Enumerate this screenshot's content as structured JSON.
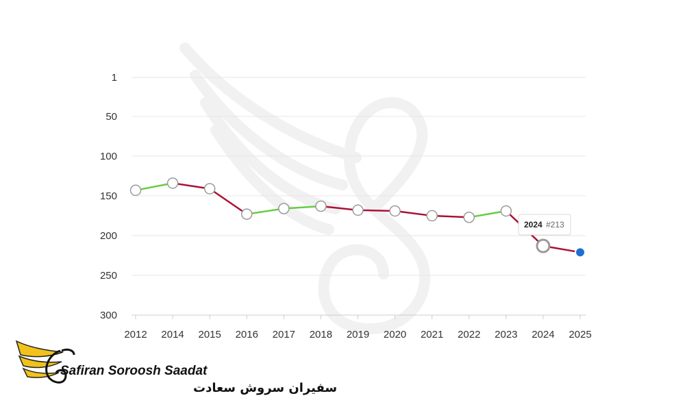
{
  "chart_data": {
    "type": "line",
    "title": "",
    "xlabel": "",
    "ylabel": "",
    "y_inverted": true,
    "ylim": [
      1,
      300
    ],
    "yticks": [
      "1",
      "50",
      "100",
      "150",
      "200",
      "250",
      "300"
    ],
    "x": [
      "2012",
      "2014",
      "2015",
      "2016",
      "2017",
      "2018",
      "2019",
      "2020",
      "2021",
      "2022",
      "2023",
      "2024",
      "2025"
    ],
    "values": [
      143,
      134,
      141,
      173,
      166,
      163,
      168,
      169,
      175,
      177,
      169,
      213,
      221
    ],
    "grid": true,
    "segment_colors": {
      "improved": "#66cc44",
      "declined": "#aa1133"
    },
    "last_point_color": "#1f6fd1",
    "tooltip": {
      "year": "2024",
      "rank": "#213"
    }
  },
  "brand": {
    "name_en": "Safiran Soroosh Saadat",
    "name_fa": "سفیران سروش سعادت"
  }
}
